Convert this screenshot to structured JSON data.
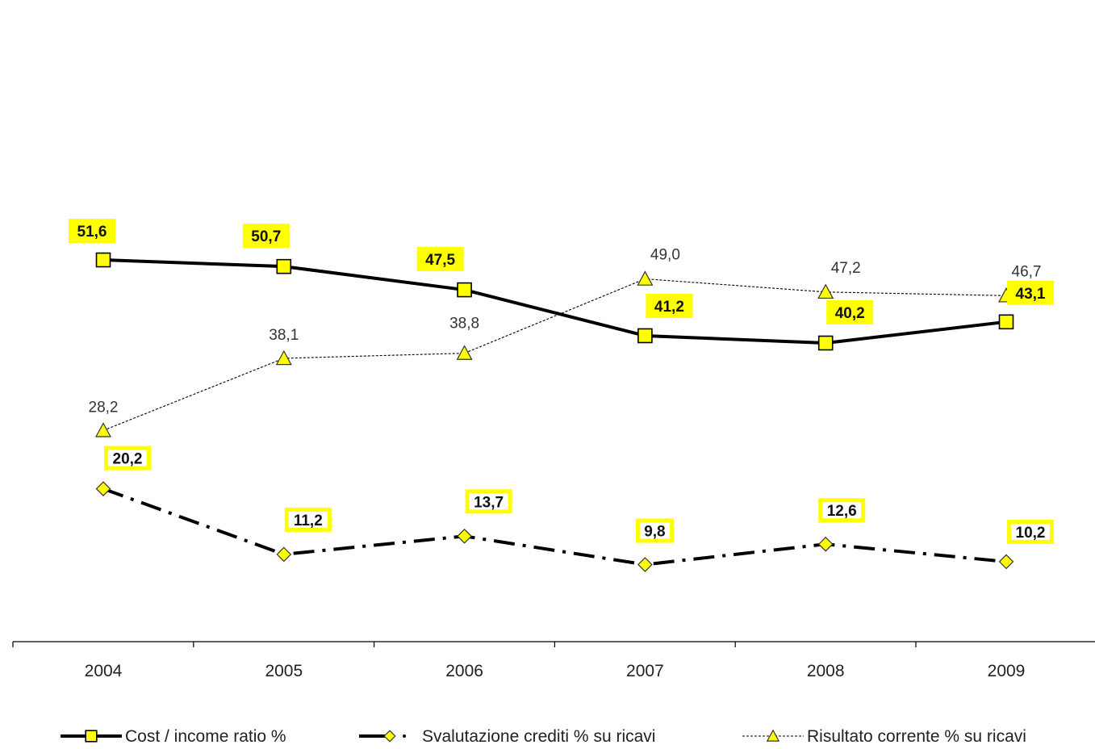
{
  "chart_data": {
    "type": "line",
    "categories": [
      "2004",
      "2005",
      "2006",
      "2007",
      "2008",
      "2009"
    ],
    "series": [
      {
        "name": "Cost / income ratio %",
        "values": [
          51.6,
          50.7,
          47.5,
          41.2,
          40.2,
          43.1
        ],
        "labels": [
          "51,6",
          "50,7",
          "47,5",
          "41,2",
          "40,2",
          "43,1"
        ],
        "marker": "square",
        "line_style": "solid",
        "label_style": "boxed"
      },
      {
        "name": "Svalutazione crediti % su ricavi",
        "values": [
          20.2,
          11.2,
          13.7,
          9.8,
          12.6,
          10.2
        ],
        "labels": [
          "20,2",
          "11,2",
          "13,7",
          "9,8",
          "12,6",
          "10,2"
        ],
        "marker": "diamond",
        "line_style": "dash-dot",
        "label_style": "boxed-outline"
      },
      {
        "name": "Risultato corrente % su ricavi",
        "values": [
          28.2,
          38.1,
          38.8,
          49.0,
          47.2,
          46.7
        ],
        "labels": [
          "28,2",
          "38,1",
          "38,8",
          "49,0",
          "47,2",
          "46,7"
        ],
        "marker": "triangle",
        "line_style": "dotted",
        "label_style": "plain"
      }
    ],
    "title": "",
    "xlabel": "",
    "ylabel": "",
    "y_axis_visible": false,
    "grid": false,
    "legend_position": "bottom",
    "colors": {
      "marker_fill": "#ffff00",
      "label_box": "#ffff00",
      "line": "#000000",
      "axis": "#000000"
    }
  }
}
